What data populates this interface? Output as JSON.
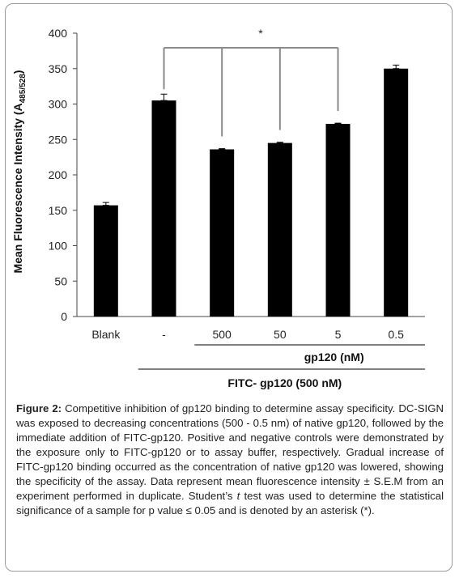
{
  "chart_data": {
    "type": "bar",
    "categories": [
      "Blank",
      "-",
      "500",
      "50",
      "5",
      "0.5"
    ],
    "values": [
      157,
      305,
      236,
      245,
      272,
      350
    ],
    "errors": [
      4,
      9,
      1,
      1,
      1,
      5
    ],
    "ylabel_main": "Mean Fluorescence Intensity (A",
    "ylabel_sub": "485/528",
    "ylabel_close": ")",
    "ylim": [
      0,
      400
    ],
    "yticks": [
      0,
      50,
      100,
      150,
      200,
      250,
      300,
      350,
      400
    ],
    "bar_color": "#000000",
    "group_labels": {
      "inner": "gp120 (nM)",
      "outer": "FITC- gp120 (500 nM)"
    },
    "significance": {
      "symbol": "*",
      "control_index": 1,
      "compared_indices": [
        2,
        3,
        4
      ]
    }
  },
  "caption": {
    "label": "Figure 2:",
    "text_before_t": " Competitive inhibition of gp120 binding to determine assay specificity. DC-SIGN was exposed to decreasing concentrations (500 - 0.5 nm) of native gp120, followed by the immediate addition of FITC-gp120. Positive and negative controls were demonstrated by the exposure only to FITC-gp120 or to assay buffer, respectively. Gradual increase of FITC-gp120 binding occurred as the concentration of native gp120 was lowered, showing the specificity of the assay. Data represent mean fluorescence intensity ± S.E.M from an experiment performed in duplicate. Student’s ",
    "t": "t",
    "text_after_t": " test was used to determine the statistical significance of a sample for p value ≤ 0.05 and is denoted by an asterisk (*)."
  }
}
